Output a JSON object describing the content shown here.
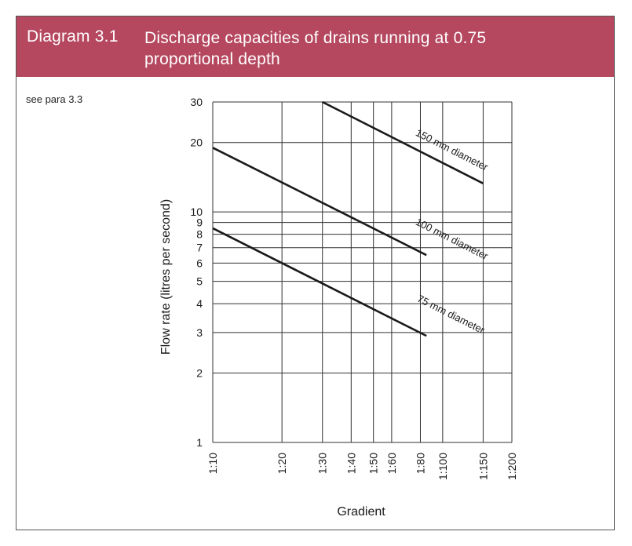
{
  "header": {
    "diagram_number": "Diagram 3.1",
    "title": "Discharge capacities of drains running at 0.75 proportional depth",
    "title_line1": "Discharge capacities of drains running at 0.75",
    "title_line2": "proportional depth",
    "color": "#b5475f"
  },
  "note": "see para 3.3",
  "chart_data": {
    "type": "line",
    "title": "",
    "xlabel": "Gradient",
    "ylabel": "Flow rate (litres per second)",
    "x_scale": "log of gradient ratio (1:n)",
    "y_scale": "log",
    "xlim": [
      "1:10",
      "1:200"
    ],
    "ylim": [
      1,
      30
    ],
    "grid": true,
    "x_ticks": [
      {
        "n": 10,
        "label": "1:10"
      },
      {
        "n": 20,
        "label": "1:20"
      },
      {
        "n": 30,
        "label": "1:30"
      },
      {
        "n": 40,
        "label": "1:40"
      },
      {
        "n": 50,
        "label": "1:50"
      },
      {
        "n": 60,
        "label": "1:60"
      },
      {
        "n": 80,
        "label": "1:80"
      },
      {
        "n": 100,
        "label": "1:100"
      },
      {
        "n": 150,
        "label": "1:150"
      },
      {
        "n": 200,
        "label": "1:200"
      }
    ],
    "y_ticks": [
      {
        "v": 1,
        "label": "1"
      },
      {
        "v": 2,
        "label": "2"
      },
      {
        "v": 3,
        "label": "3"
      },
      {
        "v": 4,
        "label": "4"
      },
      {
        "v": 5,
        "label": "5"
      },
      {
        "v": 6,
        "label": "6"
      },
      {
        "v": 7,
        "label": "7"
      },
      {
        "v": 8,
        "label": "8"
      },
      {
        "v": 9,
        "label": "9"
      },
      {
        "v": 10,
        "label": "10"
      },
      {
        "v": 20,
        "label": "20"
      },
      {
        "v": 30,
        "label": "30"
      }
    ],
    "series": [
      {
        "name": "150 mm diameter",
        "points": [
          {
            "n": 30,
            "v": 30
          },
          {
            "n": 150,
            "v": 13.3
          }
        ]
      },
      {
        "name": "100 mm diameter",
        "points": [
          {
            "n": 10,
            "v": 19
          },
          {
            "n": 85,
            "v": 6.5
          }
        ]
      },
      {
        "name": "75 mm diameter",
        "points": [
          {
            "n": 10,
            "v": 8.5
          },
          {
            "n": 85,
            "v": 2.9
          }
        ]
      }
    ],
    "line_color": "#1a1a1a"
  }
}
